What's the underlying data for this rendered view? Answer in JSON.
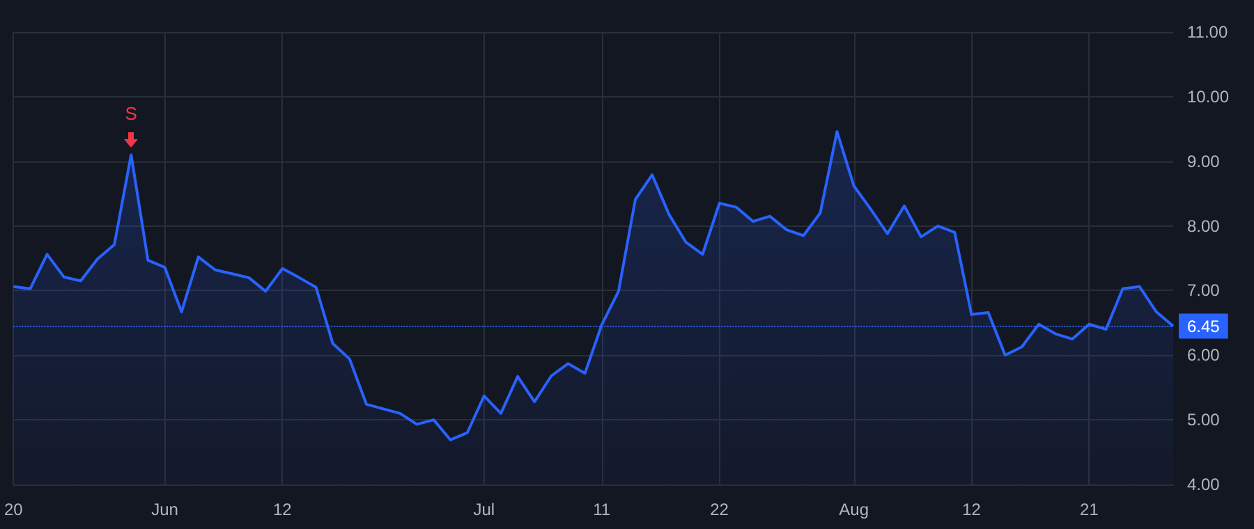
{
  "chart_data": {
    "type": "area",
    "categories": [
      "20",
      null,
      null,
      null,
      null,
      null,
      null,
      null,
      null,
      "Jun",
      null,
      null,
      null,
      null,
      null,
      null,
      "12",
      null,
      null,
      null,
      null,
      null,
      null,
      null,
      null,
      null,
      null,
      null,
      "Jul",
      null,
      null,
      null,
      null,
      null,
      null,
      "11",
      null,
      null,
      null,
      null,
      null,
      null,
      "22",
      null,
      null,
      null,
      null,
      null,
      null,
      null,
      "Aug",
      null,
      null,
      null,
      null,
      null,
      null,
      "12",
      null,
      null,
      null,
      null,
      null,
      null,
      "21",
      null,
      null,
      null,
      null,
      null
    ],
    "series": [
      {
        "color": "#2962ff",
        "values": [
          7.06,
          7.03,
          7.56,
          7.21,
          7.15,
          7.49,
          7.71,
          9.1,
          7.47,
          7.36,
          6.67,
          7.52,
          7.32,
          7.26,
          7.2,
          6.99,
          7.34,
          7.2,
          7.05,
          6.18,
          5.94,
          5.24,
          5.17,
          5.1,
          4.93,
          5.0,
          4.69,
          4.8,
          5.37,
          5.1,
          5.67,
          5.28,
          5.68,
          5.87,
          5.72,
          6.47,
          6.99,
          8.41,
          8.79,
          8.18,
          7.75,
          7.56,
          8.35,
          8.29,
          8.07,
          8.15,
          7.94,
          7.85,
          8.2,
          9.46,
          8.62,
          8.26,
          7.88,
          8.31,
          7.83,
          8.0,
          7.9,
          6.63,
          6.66,
          6.0,
          6.13,
          6.48,
          6.33,
          6.25,
          6.48,
          6.4,
          7.03,
          7.06,
          6.67,
          6.45
        ]
      }
    ],
    "ylim": [
      4,
      11
    ],
    "yticks": [
      {
        "value": 4,
        "label": "4.00"
      },
      {
        "value": 5,
        "label": "5.00"
      },
      {
        "value": 6,
        "label": "6.00"
      },
      {
        "value": 7,
        "label": "7.00"
      },
      {
        "value": 8,
        "label": "8.00"
      },
      {
        "value": 9,
        "label": "9.00"
      },
      {
        "value": 10,
        "label": "10.00"
      },
      {
        "value": 11,
        "label": "11.00"
      }
    ],
    "ref_lines": [
      {
        "axis": "y",
        "value": 6.45,
        "label": "6.45",
        "color": "#2962ff",
        "line_style": "dotted"
      }
    ],
    "annotations": [
      {
        "text": "S",
        "y": 9.1
      }
    ],
    "grid": true,
    "marker": "none",
    "line_style": "solid"
  }
}
